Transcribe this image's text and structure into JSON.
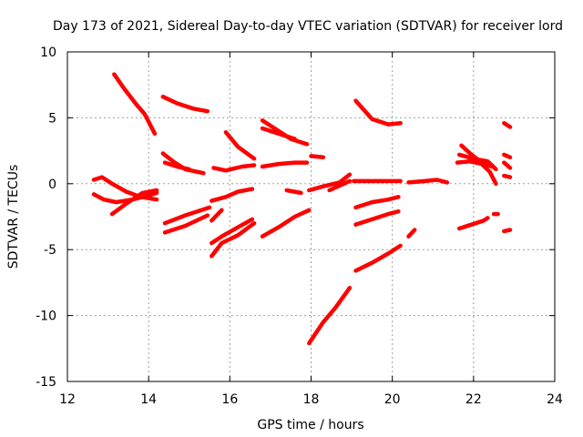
{
  "chart_data": {
    "type": "line",
    "title": "Day 173 of 2021, Sidereal Day-to-day VTEC variation (SDTVAR) for receiver lord",
    "xlabel": "GPS time / hours",
    "ylabel": "SDTVAR / TECUs",
    "xlim": [
      12,
      24
    ],
    "ylim": [
      -15,
      10
    ],
    "xticks": [
      "12",
      "14",
      "16",
      "18",
      "20",
      "22",
      "24"
    ],
    "yticks": [
      "10",
      "5",
      "0",
      "-5",
      "-10",
      "-15"
    ],
    "xtick_values": [
      12,
      14,
      16,
      18,
      20,
      22,
      24
    ],
    "ytick_values": [
      10,
      5,
      0,
      -5,
      -10,
      -15
    ],
    "grid": true,
    "marker": "+",
    "color": "#ff0000",
    "series": [
      {
        "name": "s1",
        "points": [
          [
            13.15,
            8.3
          ],
          [
            13.4,
            7.2
          ],
          [
            13.7,
            6.0
          ],
          [
            13.9,
            5.3
          ],
          [
            14.15,
            3.8
          ]
        ]
      },
      {
        "name": "s2",
        "points": [
          [
            14.35,
            6.6
          ],
          [
            14.7,
            6.1
          ],
          [
            15.1,
            5.7
          ],
          [
            15.45,
            5.5
          ]
        ]
      },
      {
        "name": "s3",
        "points": [
          [
            14.35,
            2.3
          ],
          [
            14.6,
            1.7
          ],
          [
            14.9,
            1.1
          ],
          [
            15.35,
            0.8
          ]
        ]
      },
      {
        "name": "s4",
        "points": [
          [
            14.4,
            1.6
          ],
          [
            14.7,
            1.3
          ],
          [
            15.0,
            1.1
          ]
        ]
      },
      {
        "name": "s5",
        "points": [
          [
            12.65,
            0.3
          ],
          [
            12.85,
            0.5
          ],
          [
            13.1,
            0.0
          ],
          [
            13.45,
            -0.6
          ],
          [
            13.8,
            -1.0
          ],
          [
            14.2,
            -1.2
          ]
        ]
      },
      {
        "name": "s6",
        "points": [
          [
            12.65,
            -0.8
          ],
          [
            12.9,
            -1.2
          ],
          [
            13.2,
            -1.4
          ],
          [
            13.6,
            -1.2
          ],
          [
            14.0,
            -0.9
          ],
          [
            14.2,
            -0.7
          ]
        ]
      },
      {
        "name": "s7",
        "points": [
          [
            13.1,
            -2.3
          ],
          [
            13.5,
            -1.4
          ],
          [
            13.85,
            -0.7
          ],
          [
            14.2,
            -0.5
          ]
        ]
      },
      {
        "name": "s8",
        "points": [
          [
            14.4,
            -3.7
          ],
          [
            14.9,
            -3.2
          ],
          [
            15.45,
            -2.4
          ]
        ]
      },
      {
        "name": "s9",
        "points": [
          [
            14.4,
            -3.0
          ],
          [
            14.9,
            -2.4
          ],
          [
            15.5,
            -1.8
          ]
        ]
      },
      {
        "name": "s10",
        "points": [
          [
            15.55,
            -2.8
          ],
          [
            15.8,
            -2.0
          ]
        ]
      },
      {
        "name": "s11",
        "points": [
          [
            15.6,
            1.2
          ],
          [
            15.9,
            1.0
          ],
          [
            16.3,
            1.3
          ],
          [
            16.6,
            1.4
          ]
        ]
      },
      {
        "name": "s12",
        "points": [
          [
            15.9,
            3.9
          ],
          [
            16.2,
            2.8
          ],
          [
            16.6,
            1.9
          ]
        ]
      },
      {
        "name": "s13",
        "points": [
          [
            16.8,
            4.8
          ],
          [
            17.2,
            4.0
          ],
          [
            17.5,
            3.4
          ],
          [
            17.9,
            3.0
          ]
        ]
      },
      {
        "name": "s14",
        "points": [
          [
            16.8,
            4.2
          ],
          [
            17.2,
            3.8
          ],
          [
            17.6,
            3.4
          ]
        ]
      },
      {
        "name": "s15",
        "points": [
          [
            16.8,
            1.3
          ],
          [
            17.2,
            1.5
          ],
          [
            17.6,
            1.6
          ],
          [
            17.9,
            1.6
          ]
        ]
      },
      {
        "name": "s16",
        "points": [
          [
            18.0,
            2.1
          ],
          [
            18.3,
            2.0
          ]
        ]
      },
      {
        "name": "s17",
        "points": [
          [
            15.55,
            -1.3
          ],
          [
            15.9,
            -1.0
          ],
          [
            16.2,
            -0.6
          ],
          [
            16.55,
            -0.4
          ]
        ]
      },
      {
        "name": "s18",
        "points": [
          [
            15.55,
            -4.5
          ],
          [
            15.8,
            -4.0
          ],
          [
            16.2,
            -3.3
          ],
          [
            16.55,
            -2.7
          ]
        ]
      },
      {
        "name": "s19",
        "points": [
          [
            15.55,
            -5.5
          ],
          [
            15.8,
            -4.5
          ],
          [
            16.2,
            -3.9
          ],
          [
            16.6,
            -3.0
          ]
        ]
      },
      {
        "name": "s20",
        "points": [
          [
            16.8,
            -4.0
          ],
          [
            17.2,
            -3.3
          ],
          [
            17.6,
            -2.5
          ],
          [
            17.95,
            -2.0
          ]
        ]
      },
      {
        "name": "s21",
        "points": [
          [
            17.4,
            -0.5
          ],
          [
            17.75,
            -0.7
          ]
        ]
      },
      {
        "name": "s22",
        "points": [
          [
            17.95,
            -0.5
          ],
          [
            18.3,
            -0.2
          ],
          [
            18.7,
            0.1
          ],
          [
            18.95,
            0.7
          ]
        ]
      },
      {
        "name": "s23",
        "points": [
          [
            18.45,
            -0.5
          ],
          [
            18.95,
            0.2
          ]
        ]
      },
      {
        "name": "s24",
        "points": [
          [
            19.05,
            0.2
          ],
          [
            19.5,
            0.2
          ],
          [
            20.0,
            0.2
          ],
          [
            20.2,
            0.2
          ]
        ]
      },
      {
        "name": "s25",
        "points": [
          [
            20.4,
            0.1
          ],
          [
            20.8,
            0.2
          ],
          [
            21.1,
            0.3
          ],
          [
            21.35,
            0.1
          ]
        ]
      },
      {
        "name": "s26",
        "points": [
          [
            19.1,
            6.3
          ],
          [
            19.5,
            4.9
          ],
          [
            19.9,
            4.5
          ],
          [
            20.2,
            4.6
          ]
        ]
      },
      {
        "name": "s27",
        "points": [
          [
            19.1,
            -1.8
          ],
          [
            19.5,
            -1.4
          ],
          [
            19.9,
            -1.2
          ],
          [
            20.15,
            -1.0
          ]
        ]
      },
      {
        "name": "s28",
        "points": [
          [
            19.1,
            -3.1
          ],
          [
            19.5,
            -2.7
          ],
          [
            19.9,
            -2.3
          ],
          [
            20.15,
            -2.1
          ]
        ]
      },
      {
        "name": "s29",
        "points": [
          [
            17.95,
            -12.1
          ],
          [
            18.3,
            -10.5
          ],
          [
            18.6,
            -9.4
          ],
          [
            18.95,
            -7.9
          ]
        ]
      },
      {
        "name": "s30",
        "points": [
          [
            19.1,
            -6.6
          ],
          [
            19.5,
            -6.0
          ],
          [
            19.9,
            -5.3
          ],
          [
            20.2,
            -4.7
          ]
        ]
      },
      {
        "name": "s31",
        "points": [
          [
            20.4,
            -4.0
          ],
          [
            20.55,
            -3.5
          ]
        ]
      },
      {
        "name": "s32",
        "points": [
          [
            21.7,
            2.9
          ],
          [
            21.95,
            2.2
          ],
          [
            22.25,
            1.5
          ],
          [
            22.45,
            1.3
          ]
        ]
      },
      {
        "name": "s33",
        "points": [
          [
            21.6,
            1.6
          ],
          [
            21.9,
            1.7
          ],
          [
            22.2,
            1.5
          ],
          [
            22.4,
            0.9
          ],
          [
            22.55,
            0.0
          ]
        ]
      },
      {
        "name": "s34",
        "points": [
          [
            21.65,
            2.2
          ],
          [
            22.0,
            1.9
          ],
          [
            22.35,
            1.7
          ],
          [
            22.55,
            1.1
          ]
        ]
      },
      {
        "name": "s35",
        "points": [
          [
            21.65,
            -3.4
          ],
          [
            21.95,
            -3.1
          ],
          [
            22.25,
            -2.8
          ],
          [
            22.35,
            -2.6
          ]
        ]
      },
      {
        "name": "s36",
        "points": [
          [
            22.5,
            -2.3
          ],
          [
            22.6,
            -2.3
          ]
        ]
      },
      {
        "name": "s37",
        "points": [
          [
            22.75,
            4.6
          ],
          [
            22.9,
            4.3
          ]
        ]
      },
      {
        "name": "s38",
        "points": [
          [
            22.75,
            2.2
          ],
          [
            22.9,
            2.0
          ]
        ]
      },
      {
        "name": "s39",
        "points": [
          [
            22.75,
            1.6
          ],
          [
            22.9,
            1.2
          ]
        ]
      },
      {
        "name": "s40",
        "points": [
          [
            22.75,
            0.6
          ],
          [
            22.9,
            0.5
          ]
        ]
      },
      {
        "name": "s41",
        "points": [
          [
            22.75,
            -3.6
          ],
          [
            22.9,
            -3.5
          ]
        ]
      }
    ]
  }
}
